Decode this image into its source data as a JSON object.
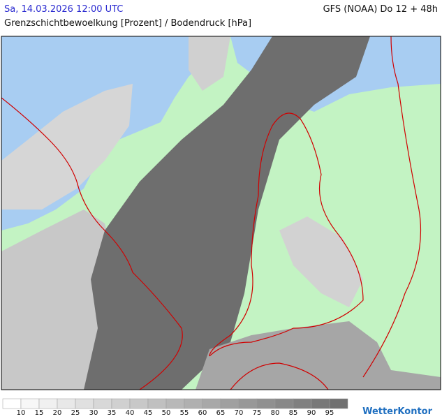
{
  "header": {
    "datetime": "Sa, 14.03.2026 12:00 UTC",
    "model": "GFS (NOAA) Do 12 + 48h",
    "subtitle": "Grenzschichtbewoelkung [Prozent] / Bodendruck [hPa]"
  },
  "legend": {
    "labels": [
      10,
      15,
      20,
      25,
      30,
      35,
      40,
      45,
      50,
      55,
      60,
      65,
      70,
      75,
      80,
      85,
      90,
      95
    ],
    "colors": [
      "#ffffff",
      "#f7f7f7",
      "#f0f0f0",
      "#e8e8e8",
      "#e0e0e0",
      "#d8d8d8",
      "#d0d0d0",
      "#c8c8c8",
      "#c0c0c0",
      "#b8b8b8",
      "#b0b0b0",
      "#a8a8a8",
      "#a0a0a0",
      "#989898",
      "#909090",
      "#888888",
      "#808080",
      "#787878",
      "#707070"
    ]
  },
  "logo": "WetterKontor"
}
